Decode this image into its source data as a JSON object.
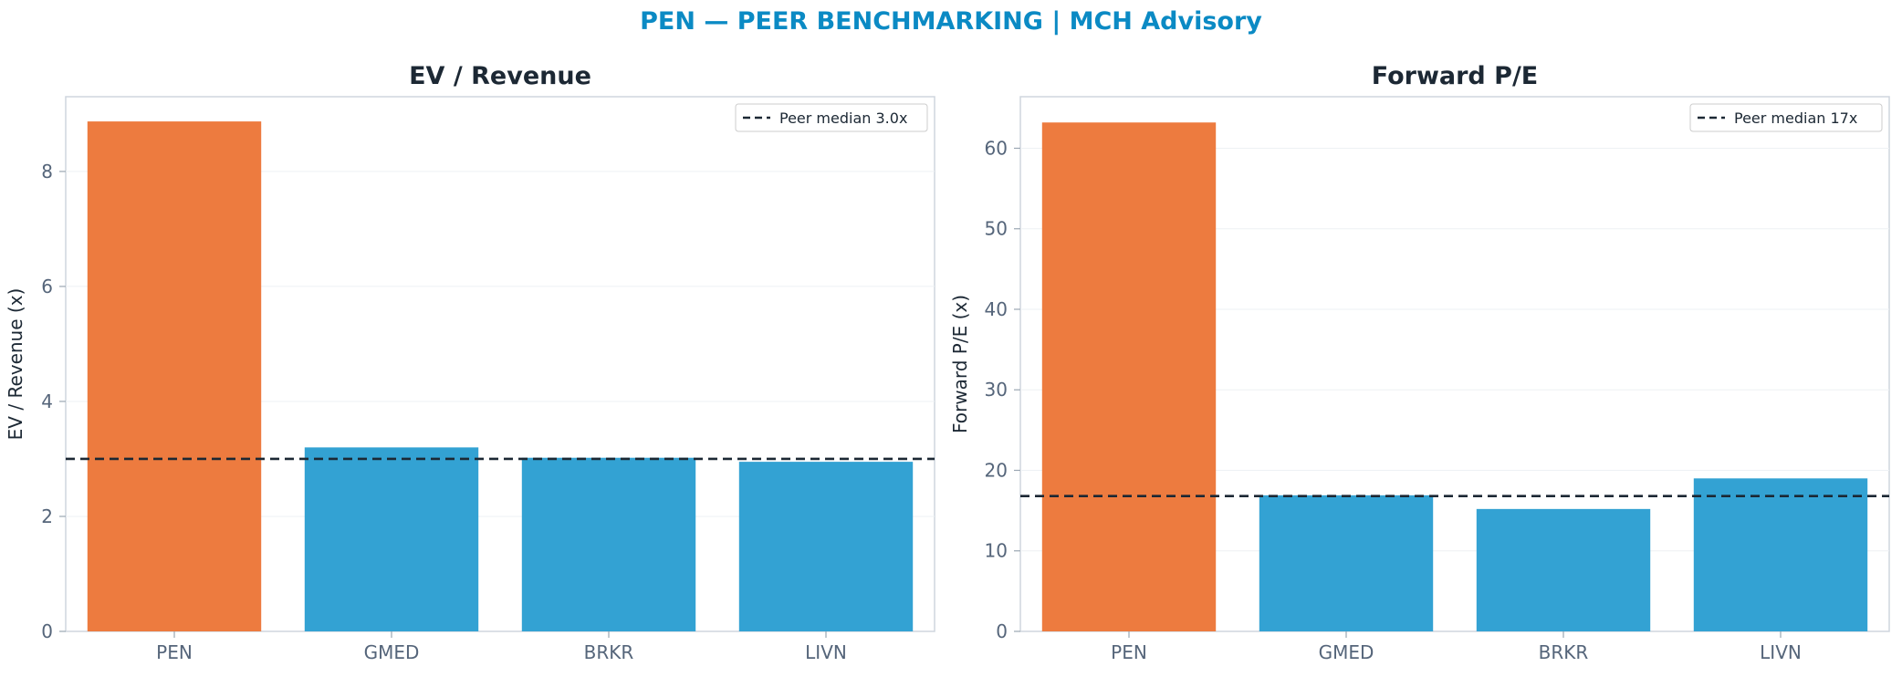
{
  "title": "PEN — PEER BENCHMARKING | MCH Advisory",
  "colors": {
    "highlight": "#ed7b3f",
    "peer": "#33a2d3",
    "median_line": "#1c2834",
    "title": "#0b8ac4"
  },
  "chart_data": [
    {
      "type": "bar",
      "title": "EV / Revenue",
      "ylabel": "EV / Revenue (x)",
      "categories": [
        "PEN",
        "GMED",
        "BRKR",
        "LIVN"
      ],
      "values": [
        8.87,
        3.2,
        3.02,
        2.95
      ],
      "highlight": "PEN",
      "ylim": [
        0,
        9.3
      ],
      "yticks": [
        0,
        2,
        4,
        6,
        8
      ],
      "reference_line": {
        "value": 3.0,
        "label": "Peer median 3.0x",
        "style": "dashed"
      },
      "grid": true,
      "legend": "top-right"
    },
    {
      "type": "bar",
      "title": "Forward P/E",
      "ylabel": "Forward P/E (x)",
      "categories": [
        "PEN",
        "GMED",
        "BRKR",
        "LIVN"
      ],
      "values": [
        63.2,
        16.9,
        15.2,
        19.0
      ],
      "highlight": "PEN",
      "ylim": [
        0,
        66.4
      ],
      "yticks": [
        0,
        10,
        20,
        30,
        40,
        50,
        60
      ],
      "reference_line": {
        "value": 16.8,
        "label": "Peer median 17x",
        "style": "dashed"
      },
      "grid": true,
      "legend": "top-right"
    }
  ]
}
